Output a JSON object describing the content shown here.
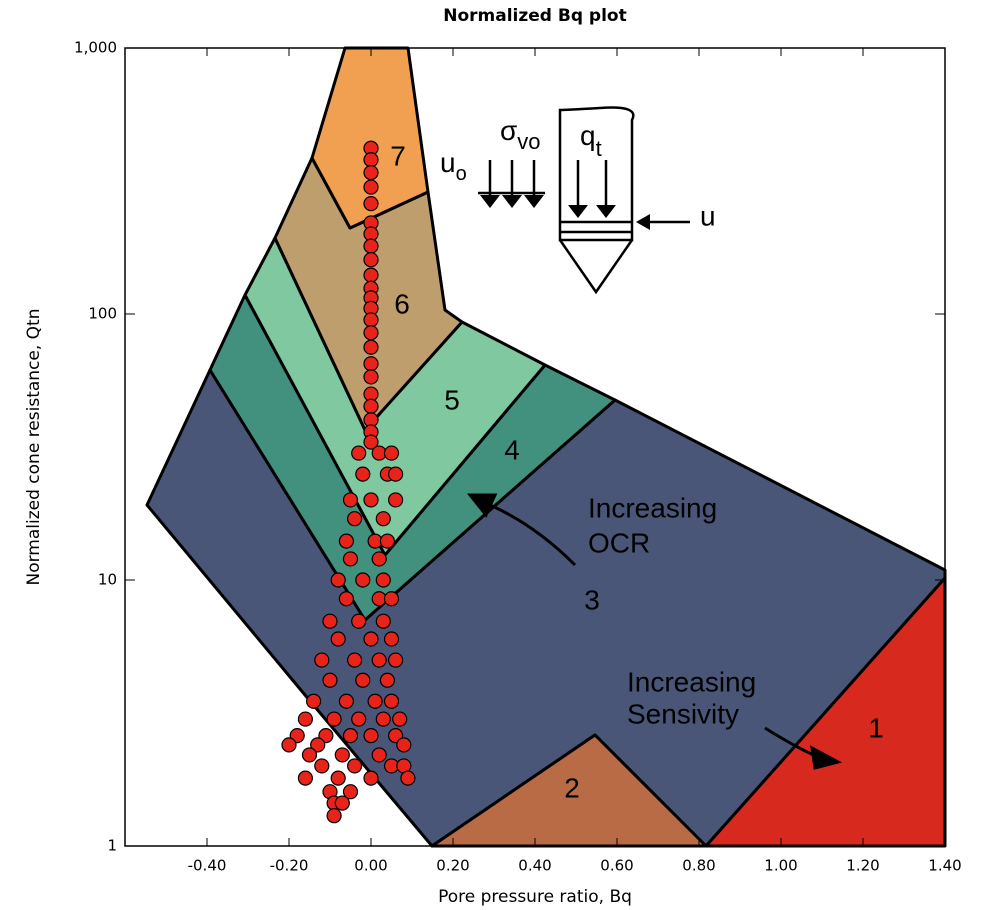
{
  "chart_data": {
    "type": "scatter",
    "title": "Normalized Bq plot",
    "x_label": "Pore pressure ratio, Bq",
    "y_label": "Normalized cone resistance, Qtn",
    "xlim": [
      -0.6,
      1.4
    ],
    "ylim": [
      1,
      1000
    ],
    "log_y": true,
    "color": "#e8231a",
    "xticks": [
      {
        "value": -0.4,
        "label": "-0.40"
      },
      {
        "value": -0.2,
        "label": "-0.20"
      },
      {
        "value": 0,
        "label": "0.00"
      },
      {
        "value": 0.2,
        "label": "0.20"
      },
      {
        "value": 0.4,
        "label": "0.40"
      },
      {
        "value": 0.6,
        "label": "0.60"
      },
      {
        "value": 0.8,
        "label": "0.80"
      },
      {
        "value": 1.0,
        "label": "1.00"
      },
      {
        "value": 1.2,
        "label": "1.20"
      },
      {
        "value": 1.4,
        "label": "1.40"
      }
    ],
    "yticks": [
      1,
      10,
      100,
      {
        "value": 1000,
        "label": "1,000"
      }
    ],
    "annotations": [
      "7",
      "6",
      "5",
      "4",
      "3",
      "2",
      "1",
      "Increasing",
      "OCR",
      "Increasing",
      "Sensivity",
      "u",
      "o",
      "σ",
      "vo",
      "q",
      "t",
      "u"
    ],
    "x": [
      0,
      0,
      0,
      0,
      0,
      0,
      0,
      0,
      0,
      0,
      0,
      0,
      0,
      0,
      0,
      0,
      0,
      0,
      0,
      0,
      0,
      0,
      0,
      -0.03,
      0.02,
      0.05,
      -0.02,
      0.04,
      0.06,
      -0.05,
      0.0,
      0.06,
      -0.04,
      0.03,
      -0.06,
      0.01,
      0.04,
      -0.05,
      0.02,
      -0.08,
      -0.02,
      0.03,
      -0.06,
      0.02,
      0.05,
      -0.1,
      -0.03,
      0.03,
      -0.08,
      0.0,
      0.05,
      -0.12,
      -0.04,
      0.02,
      0.06,
      -0.1,
      -0.02,
      0.04,
      -0.14,
      -0.06,
      0.01,
      0.05,
      -0.16,
      -0.09,
      -0.03,
      0.03,
      0.07,
      -0.18,
      -0.11,
      -0.05,
      0.0,
      0.06,
      -0.2,
      -0.13,
      0.08,
      -0.15,
      -0.07,
      0.02,
      -0.12,
      -0.04,
      0.05,
      0.08,
      -0.16,
      -0.08,
      0.0,
      0.09,
      -0.1,
      -0.05,
      -0.09,
      -0.07,
      -0.09
    ],
    "values": [
      420,
      380,
      340,
      300,
      260,
      220,
      200,
      180,
      160,
      140,
      125,
      115,
      105,
      95,
      85,
      75,
      65,
      58,
      50,
      45,
      40,
      36,
      33,
      30,
      30,
      30,
      25,
      25,
      25,
      20,
      20,
      20,
      17,
      17,
      14,
      14,
      14,
      12,
      12,
      10,
      10,
      10,
      8.5,
      8.5,
      8.5,
      7,
      7,
      7,
      6,
      6,
      6,
      5,
      5,
      5,
      5,
      4.2,
      4.2,
      4.2,
      3.5,
      3.5,
      3.5,
      3.5,
      3,
      3,
      3,
      3,
      3,
      2.6,
      2.6,
      2.6,
      2.6,
      2.6,
      2.4,
      2.4,
      2.4,
      2.2,
      2.2,
      2.2,
      2,
      2,
      2,
      2,
      1.8,
      1.8,
      1.8,
      1.8,
      1.6,
      1.6,
      1.45,
      1.45,
      1.3
    ]
  }
}
